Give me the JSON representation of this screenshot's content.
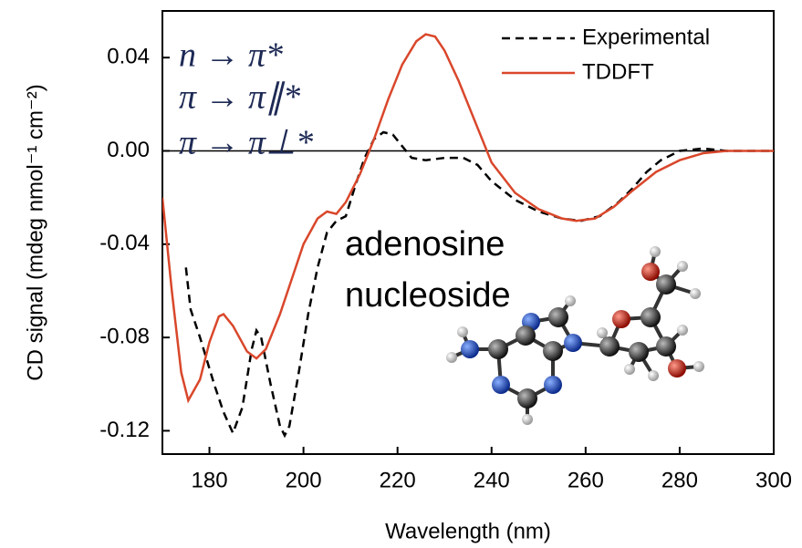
{
  "chart_data": {
    "type": "line",
    "x_label": "Wavelength (nm)",
    "y_label": "CD signal (mdeg nmol⁻¹ cm⁻²)",
    "xlim": [
      170,
      300
    ],
    "ylim": [
      -0.13,
      0.06
    ],
    "xticks": [
      180,
      200,
      220,
      240,
      260,
      280,
      300
    ],
    "yticks": [
      0.04,
      {
        "value": 0,
        "label": "0.00"
      },
      -0.04,
      -0.08,
      -0.12
    ],
    "legend": "upper right",
    "annotations": [
      "n → π*",
      "π → π∥*",
      "π → π⊥*",
      "adenosine",
      "nucleoside"
    ],
    "series": [
      {
        "name": "Experimental",
        "color": "#000000",
        "dash": true,
        "x": [
          175,
          176,
          178,
          181,
          183,
          185,
          187,
          189,
          190,
          191,
          193,
          195,
          196,
          197,
          199,
          201,
          203,
          205,
          207,
          209,
          211,
          213,
          215,
          217,
          219,
          221,
          223,
          226,
          230,
          234,
          237,
          240,
          245,
          250,
          255,
          259,
          263,
          267,
          270,
          273,
          276,
          280,
          285,
          290,
          300
        ],
        "values": [
          -0.05,
          -0.068,
          -0.08,
          -0.1,
          -0.112,
          -0.121,
          -0.11,
          -0.085,
          -0.077,
          -0.08,
          -0.1,
          -0.118,
          -0.122,
          -0.118,
          -0.095,
          -0.07,
          -0.05,
          -0.035,
          -0.03,
          -0.028,
          -0.015,
          -0.003,
          0.005,
          0.008,
          0.007,
          0.002,
          -0.003,
          -0.004,
          -0.003,
          -0.003,
          -0.006,
          -0.013,
          -0.021,
          -0.026,
          -0.029,
          -0.03,
          -0.028,
          -0.022,
          -0.016,
          -0.009,
          -0.004,
          0,
          0.001,
          0,
          0
        ]
      },
      {
        "name": "TDDFT",
        "color": "#d9472b",
        "dash": false,
        "x": [
          170,
          172,
          174,
          175.5,
          178,
          180,
          182,
          183,
          185,
          188,
          190,
          192,
          195,
          198,
          200,
          203,
          205,
          207,
          209,
          212,
          215,
          218,
          221,
          224,
          226,
          228,
          230,
          233,
          236,
          238,
          240,
          245,
          250,
          255,
          258,
          262,
          266,
          270,
          275,
          280,
          285,
          290,
          300
        ],
        "values": [
          -0.02,
          -0.06,
          -0.095,
          -0.107,
          -0.098,
          -0.082,
          -0.071,
          -0.07,
          -0.075,
          -0.086,
          -0.089,
          -0.085,
          -0.07,
          -0.052,
          -0.04,
          -0.029,
          -0.026,
          -0.027,
          -0.022,
          -0.01,
          0.005,
          0.022,
          0.037,
          0.047,
          0.05,
          0.049,
          0.043,
          0.03,
          0.015,
          0.005,
          -0.005,
          -0.018,
          -0.025,
          -0.029,
          -0.03,
          -0.029,
          -0.024,
          -0.017,
          -0.009,
          -0.004,
          -0.001,
          0,
          0
        ]
      }
    ]
  }
}
